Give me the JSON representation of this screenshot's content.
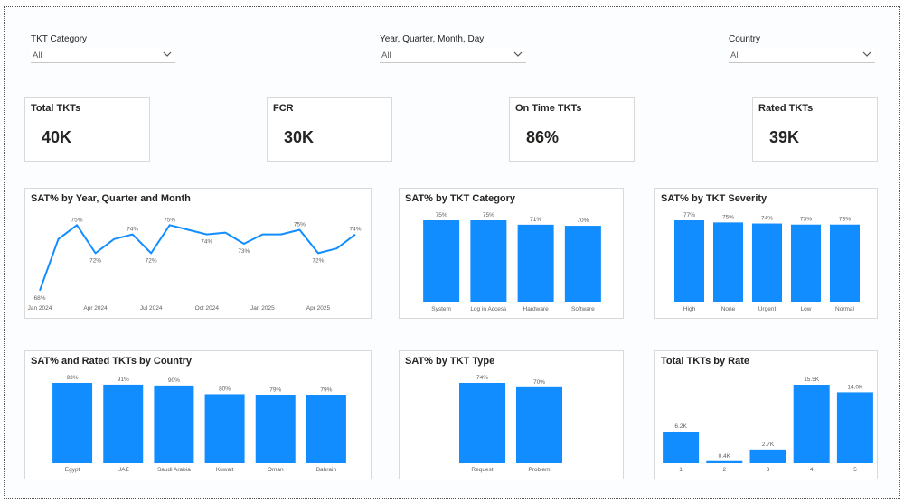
{
  "filters": [
    {
      "label": "TKT Category",
      "value": "All"
    },
    {
      "label": "Year, Quarter, Month, Day",
      "value": "All"
    },
    {
      "label": "Country",
      "value": "All"
    }
  ],
  "kpis": [
    {
      "title": "Total TKTs",
      "value": "40K"
    },
    {
      "title": "FCR",
      "value": "30K"
    },
    {
      "title": "On Time TKTs",
      "value": "86%"
    },
    {
      "title": "Rated TKTs",
      "value": "39K"
    }
  ],
  "colors": {
    "bar": "#118dff",
    "line": "#118dff"
  },
  "chart_data": [
    {
      "id": "sat-by-month",
      "type": "line",
      "title": "SAT% by Year, Quarter and Month",
      "x_tick_labels": [
        "Jan 2024",
        "Apr 2024",
        "Jul 2024",
        "Oct 2024",
        "Jan 2025",
        "Apr 2025"
      ],
      "values": [
        68,
        73.5,
        75,
        72,
        73.5,
        74,
        72,
        75,
        74.5,
        74,
        74.2,
        73,
        74,
        74,
        74.5,
        72,
        72.5,
        74
      ],
      "data_labels": [
        {
          "i": 0,
          "text": "68%"
        },
        {
          "i": 2,
          "text": "75%"
        },
        {
          "i": 3,
          "text": "72%"
        },
        {
          "i": 5,
          "text": "74%"
        },
        {
          "i": 6,
          "text": "72%"
        },
        {
          "i": 7,
          "text": "75%"
        },
        {
          "i": 9,
          "text": "74%"
        },
        {
          "i": 11,
          "text": "73%"
        },
        {
          "i": 14,
          "text": "75%"
        },
        {
          "i": 15,
          "text": "72%"
        },
        {
          "i": 17,
          "text": "74%"
        }
      ],
      "ylim": [
        67.5,
        75.8
      ]
    },
    {
      "id": "sat-by-category",
      "type": "bar",
      "title": "SAT% by TKT Category",
      "categories": [
        "System",
        "Log in Access",
        "Hardware",
        "Software"
      ],
      "values": [
        75,
        75,
        71,
        70
      ],
      "labels": [
        "75%",
        "75%",
        "71%",
        "70%"
      ],
      "ylim": [
        0,
        75
      ]
    },
    {
      "id": "sat-by-severity",
      "type": "bar",
      "title": "SAT% by TKT Severity",
      "categories": [
        "High",
        "None",
        "Urgent",
        "Low",
        "Normal"
      ],
      "values": [
        77,
        75,
        74,
        73,
        73
      ],
      "labels": [
        "77%",
        "75%",
        "74%",
        "73%",
        "73%"
      ],
      "ylim": [
        0,
        77
      ]
    },
    {
      "id": "sat-by-country",
      "type": "bar",
      "title": "SAT% and Rated TKTs by Country",
      "categories": [
        "Egypt",
        "UAE",
        "Saudi Arabia",
        "Kuwait",
        "Oman",
        "Bahrain"
      ],
      "values": [
        93,
        91,
        90,
        80,
        79,
        79
      ],
      "labels": [
        "93%",
        "91%",
        "90%",
        "80%",
        "79%",
        "79%"
      ],
      "ylim": [
        0,
        93
      ]
    },
    {
      "id": "sat-by-type",
      "type": "bar",
      "title": "SAT% by TKT Type",
      "categories": [
        "Request",
        "Problem"
      ],
      "values": [
        74,
        70
      ],
      "labels": [
        "74%",
        "70%"
      ],
      "ylim": [
        0,
        74
      ]
    },
    {
      "id": "tkts-by-rate",
      "type": "bar",
      "title": "Total TKTs by Rate",
      "categories": [
        "1",
        "2",
        "3",
        "4",
        "5"
      ],
      "values": [
        6.2,
        0.4,
        2.7,
        15.5,
        14.0
      ],
      "labels": [
        "6.2K",
        "0.4K",
        "2.7K",
        "15.5K",
        "14.0K"
      ],
      "ylim": [
        0,
        15.5
      ]
    }
  ]
}
